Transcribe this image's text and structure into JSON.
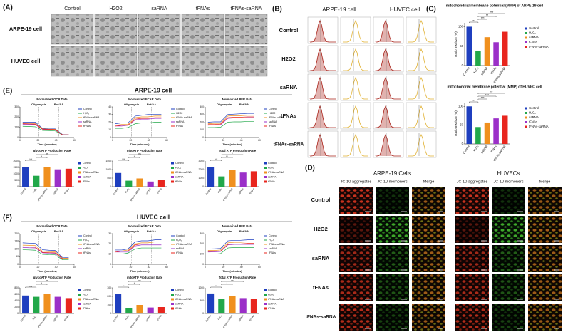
{
  "panels": {
    "A": {
      "label": "(A)",
      "columns": [
        "Control",
        "H2O2",
        "saRNA",
        "tFNAs",
        "tFNAs-saRNA"
      ],
      "rows": [
        "ARPE-19 cell",
        "HUVEC cell"
      ]
    },
    "B": {
      "label": "(B)",
      "columns": [
        "ARPE-19 cell",
        "HUVEC cell"
      ],
      "rows": [
        "Control",
        "H2O2",
        "saRNA",
        "tFNAs",
        "tFNAs-saRNA"
      ]
    },
    "C": {
      "label": "(C)"
    },
    "D": {
      "label": "(D)",
      "groups": [
        "ARPE-19 Cells",
        "HUVECs"
      ],
      "columns": [
        "JC-10 aggregates",
        "JC-10 momoners",
        "Merge"
      ],
      "rows": [
        "Control",
        "H2O2",
        "saRNA",
        "tFNAs",
        "tFNAs-saRNA"
      ]
    },
    "E": {
      "label": "(E)",
      "title": "ARPE-19 cell"
    },
    "F": {
      "label": "(F)",
      "title": "HUVEC cell"
    }
  },
  "chart_data": [
    {
      "type": "bar",
      "title": "mitochondrial membrane potential (MMP) of ARPE-19 cell",
      "ylabel": "Ratio 590/525 (%)",
      "categories": [
        "Control",
        "H₂O₂",
        "saRNA",
        "tFNAs",
        "tFNAs-saRNA"
      ],
      "values": [
        100,
        37,
        73,
        60,
        87
      ],
      "colors": [
        "#1f3fbf",
        "#22a84a",
        "#f0901e",
        "#9b30c8",
        "#e8261e"
      ],
      "ylim": [
        0,
        110
      ],
      "yticks": [
        0,
        50,
        100
      ],
      "annotations": [
        "***",
        "***",
        "**",
        "***"
      ]
    },
    {
      "type": "bar",
      "title": "mitochondrial membrane potential (MMP) of HUVEC cell",
      "ylabel": "Ratio 590/525 (%)",
      "categories": [
        "Control",
        "H₂O₂",
        "saRNA",
        "tFNAs",
        "tFNAs-saRNA"
      ],
      "values": [
        100,
        45,
        57,
        68,
        75
      ],
      "colors": [
        "#1f3fbf",
        "#22a84a",
        "#f0901e",
        "#9b30c8",
        "#e8261e"
      ],
      "ylim": [
        0,
        110
      ],
      "yticks": [
        0,
        50,
        100
      ],
      "annotations": [
        "***",
        "***",
        "***",
        "**"
      ]
    },
    {
      "type": "line",
      "title": "Normalized OCR Data",
      "xlabel": "Time (minutes)",
      "x": [
        3,
        10,
        17,
        25,
        32,
        39,
        47,
        54
      ],
      "xlim": [
        0,
        60
      ],
      "xticks": [
        0,
        20,
        40,
        60
      ],
      "ylim": [
        0,
        300
      ],
      "yticks": [
        0,
        100,
        200,
        300
      ],
      "events": [
        {
          "label": "Oligomycin",
          "x": 21
        },
        {
          "label": "Rot/AA",
          "x": 43
        }
      ],
      "series": [
        {
          "name": "Control",
          "color": "#1f3fbf",
          "values": [
            150,
            150,
            150,
            90,
            85,
            85,
            30,
            28
          ]
        },
        {
          "name": "H₂O₂",
          "color": "#22a84a",
          "values": [
            110,
            108,
            105,
            70,
            68,
            65,
            25,
            25
          ]
        },
        {
          "name": "tFNAs-saRNA",
          "color": "#f0901e",
          "values": [
            140,
            140,
            138,
            85,
            82,
            80,
            28,
            27
          ]
        },
        {
          "name": "saRNA",
          "color": "#9b30c8",
          "values": [
            130,
            128,
            126,
            80,
            78,
            76,
            27,
            26
          ]
        },
        {
          "name": "tFNAs",
          "color": "#e8261e",
          "values": [
            135,
            133,
            131,
            82,
            80,
            78,
            27,
            26
          ]
        }
      ]
    },
    {
      "type": "line",
      "title": "Normalized ECAR Data",
      "xlabel": "Time (minutes)",
      "x": [
        3,
        10,
        17,
        25,
        32,
        39,
        47,
        54
      ],
      "xlim": [
        0,
        60
      ],
      "xticks": [
        0,
        20,
        40,
        60
      ],
      "ylim": [
        0,
        40
      ],
      "yticks": [
        0,
        10,
        20,
        30,
        40
      ],
      "events": [
        {
          "label": "Oligomycin",
          "x": 21
        },
        {
          "label": "Rot/AA",
          "x": 43
        }
      ],
      "series": [
        {
          "name": "Control",
          "color": "#1f3fbf",
          "values": [
            18,
            19,
            19,
            28,
            29,
            30,
            30,
            30
          ]
        },
        {
          "name": "H2O2",
          "color": "#22a84a",
          "values": [
            12,
            12,
            13,
            18,
            19,
            19,
            20,
            20
          ]
        },
        {
          "name": "tFNAs-saRNA",
          "color": "#f0901e",
          "values": [
            16,
            17,
            17,
            26,
            27,
            27,
            28,
            28
          ]
        },
        {
          "name": "saRNA",
          "color": "#9b30c8",
          "values": [
            15,
            15,
            16,
            23,
            24,
            24,
            25,
            25
          ]
        },
        {
          "name": "tFNAs",
          "color": "#e8261e",
          "values": [
            15,
            16,
            16,
            24,
            25,
            25,
            26,
            26
          ]
        }
      ]
    },
    {
      "type": "line",
      "title": "Normalized PER Data",
      "xlabel": "Time (minutes)",
      "x": [
        3,
        10,
        17,
        25,
        32,
        39,
        47,
        54
      ],
      "xlim": [
        0,
        60
      ],
      "xticks": [
        0,
        20,
        40,
        60
      ],
      "ylim": [
        0,
        400
      ],
      "yticks": [
        0,
        100,
        200,
        300,
        400
      ],
      "events": [
        {
          "label": "Oligomycin",
          "x": 21
        },
        {
          "label": "Rot/AA",
          "x": 43
        }
      ],
      "series": [
        {
          "name": "Control",
          "color": "#1f3fbf",
          "values": [
            200,
            205,
            205,
            300,
            305,
            310,
            315,
            315
          ]
        },
        {
          "name": "H2O2",
          "color": "#22a84a",
          "values": [
            130,
            130,
            135,
            200,
            205,
            205,
            210,
            210
          ]
        },
        {
          "name": "tFNAs-saRNA",
          "color": "#f0901e",
          "values": [
            180,
            185,
            185,
            280,
            285,
            285,
            290,
            290
          ]
        },
        {
          "name": "saRNA",
          "color": "#9b30c8",
          "values": [
            160,
            165,
            165,
            250,
            255,
            255,
            260,
            260
          ]
        },
        {
          "name": "tFNAs",
          "color": "#e8261e",
          "values": [
            170,
            170,
            175,
            260,
            265,
            265,
            270,
            270
          ]
        }
      ]
    },
    {
      "type": "bar",
      "title": "glycoATP Production Rate",
      "categories": [
        "Control",
        "H₂O₂",
        "tFNAs-saRNA",
        "saRNA",
        "tFNAs"
      ],
      "values": [
        1550,
        850,
        1500,
        1350,
        1400
      ],
      "colors": [
        "#1f3fbf",
        "#22a84a",
        "#f0901e",
        "#9b30c8",
        "#e8261e"
      ],
      "ylim": [
        0,
        2000
      ],
      "yticks": [
        0,
        500,
        1000,
        1500,
        2000
      ],
      "annotations": [
        "***",
        "*",
        "ns"
      ]
    },
    {
      "type": "bar",
      "title": "mitoATP Production Rate",
      "categories": [
        "Control",
        "H₂O₂",
        "tFNAs-saRNA",
        "saRNA",
        "tFNAs"
      ],
      "values": [
        800,
        350,
        480,
        300,
        400
      ],
      "colors": [
        "#1f3fbf",
        "#22a84a",
        "#f0901e",
        "#9b30c8",
        "#e8261e"
      ],
      "ylim": [
        0,
        1500
      ],
      "yticks": [
        0,
        500,
        1000,
        1500
      ],
      "annotations": [
        "***",
        "*",
        "ns"
      ]
    },
    {
      "type": "bar",
      "title": "Total ATP Production Rate",
      "categories": [
        "Control",
        "H₂O₂",
        "tFNAs-saRNA",
        "saRNA",
        "tFNAs"
      ],
      "values": [
        2300,
        1200,
        2000,
        1650,
        1800
      ],
      "colors": [
        "#1f3fbf",
        "#22a84a",
        "#f0901e",
        "#9b30c8",
        "#e8261e"
      ],
      "ylim": [
        0,
        3000
      ],
      "yticks": [
        0,
        1000,
        2000,
        3000
      ],
      "annotations": [
        "***",
        "**",
        "*"
      ]
    },
    {
      "type": "line",
      "title": "Normalized OCR Data",
      "xlabel": "Time (minutes)",
      "x": [
        3,
        10,
        17,
        25,
        32,
        39,
        47,
        54
      ],
      "xlim": [
        0,
        60
      ],
      "xticks": [
        0,
        20,
        40,
        60
      ],
      "ylim": [
        0,
        200
      ],
      "yticks": [
        0,
        50,
        100,
        150,
        200
      ],
      "events": [
        {
          "label": "Oligomycin",
          "x": 21
        },
        {
          "label": "Rot/AA",
          "x": 43
        }
      ],
      "series": [
        {
          "name": "Control",
          "color": "#1f3fbf",
          "values": [
            140,
            138,
            136,
            95,
            92,
            90,
            45,
            44
          ]
        },
        {
          "name": "H₂O₂",
          "color": "#22a84a",
          "values": [
            95,
            94,
            92,
            65,
            63,
            62,
            30,
            30
          ]
        },
        {
          "name": "tFNAs-saRNA",
          "color": "#f0901e",
          "values": [
            125,
            124,
            122,
            85,
            83,
            82,
            40,
            40
          ]
        },
        {
          "name": "saRNA",
          "color": "#9b30c8",
          "values": [
            110,
            108,
            107,
            75,
            73,
            72,
            35,
            35
          ]
        },
        {
          "name": "tFNAs",
          "color": "#e8261e",
          "values": [
            115,
            113,
            112,
            78,
            76,
            75,
            37,
            36
          ]
        }
      ]
    },
    {
      "type": "line",
      "title": "Normalized ECAR Data",
      "xlabel": "Time (minutes)",
      "x": [
        3,
        10,
        17,
        25,
        32,
        39,
        47,
        54
      ],
      "xlim": [
        0,
        60
      ],
      "xticks": [
        0,
        20,
        40,
        60
      ],
      "ylim": [
        0,
        30
      ],
      "yticks": [
        0,
        10,
        20,
        30
      ],
      "events": [
        {
          "label": "Oligomycin",
          "x": 21
        },
        {
          "label": "Rot/AA",
          "x": 43
        }
      ],
      "series": [
        {
          "name": "Control",
          "color": "#1f3fbf",
          "values": [
            14,
            14,
            15,
            22,
            23,
            23,
            24,
            24
          ]
        },
        {
          "name": "H₂O₂",
          "color": "#22a84a",
          "values": [
            10,
            10,
            11,
            15,
            16,
            16,
            16,
            16
          ]
        },
        {
          "name": "tFNAs-saRNA",
          "color": "#f0901e",
          "values": [
            13,
            13,
            14,
            20,
            21,
            21,
            22,
            22
          ]
        },
        {
          "name": "saRNA",
          "color": "#9b30c8",
          "values": [
            12,
            12,
            12,
            18,
            19,
            19,
            19,
            19
          ]
        },
        {
          "name": "tFNAs",
          "color": "#e8261e",
          "values": [
            12,
            13,
            13,
            19,
            20,
            20,
            20,
            20
          ]
        }
      ]
    },
    {
      "type": "line",
      "title": "Normalized PER Data",
      "xlabel": "Time (minutes)",
      "x": [
        3,
        10,
        17,
        25,
        32,
        39,
        47,
        54
      ],
      "xlim": [
        0,
        60
      ],
      "xticks": [
        0,
        20,
        40,
        60
      ],
      "ylim": [
        0,
        300
      ],
      "yticks": [
        0,
        100,
        200,
        300
      ],
      "events": [
        {
          "label": "Oligomycin",
          "x": 21
        },
        {
          "label": "Rot/AA",
          "x": 43
        }
      ],
      "series": [
        {
          "name": "Control",
          "color": "#1f3fbf",
          "values": [
            150,
            152,
            155,
            230,
            235,
            235,
            240,
            240
          ]
        },
        {
          "name": "H₂O₂",
          "color": "#22a84a",
          "values": [
            100,
            100,
            105,
            160,
            165,
            165,
            165,
            165
          ]
        },
        {
          "name": "tFNAs-saRNA",
          "color": "#f0901e",
          "values": [
            135,
            135,
            140,
            210,
            215,
            215,
            220,
            220
          ]
        },
        {
          "name": "saRNA",
          "color": "#9b30c8",
          "values": [
            120,
            122,
            125,
            190,
            195,
            195,
            195,
            195
          ]
        },
        {
          "name": "tFNAs",
          "color": "#e8261e",
          "values": [
            125,
            127,
            130,
            195,
            200,
            200,
            205,
            205
          ]
        }
      ]
    },
    {
      "type": "bar",
      "title": "glycoATP Production Rate",
      "categories": [
        "Control",
        "H₂O₂",
        "tFNAs-saRNA",
        "saRNA",
        "tFNAs"
      ],
      "values": [
        560,
        520,
        600,
        520,
        480
      ],
      "colors": [
        "#1f3fbf",
        "#22a84a",
        "#f0901e",
        "#9b30c8",
        "#e8261e"
      ],
      "ylim": [
        0,
        800
      ],
      "yticks": [
        0,
        200,
        400,
        600,
        800
      ],
      "annotations": [
        "ns",
        "*",
        "ns"
      ]
    },
    {
      "type": "bar",
      "title": "mitoATP Production Rate",
      "categories": [
        "Control",
        "H₂O₂",
        "tFNAs-saRNA",
        "saRNA",
        "tFNAs"
      ],
      "values": [
        230,
        60,
        100,
        70,
        75
      ],
      "colors": [
        "#1f3fbf",
        "#22a84a",
        "#f0901e",
        "#9b30c8",
        "#e8261e"
      ],
      "ylim": [
        0,
        300
      ],
      "yticks": [
        0,
        100,
        200,
        300
      ],
      "annotations": [
        "**",
        "*",
        "ns"
      ]
    },
    {
      "type": "bar",
      "title": "Total ATP Production Rate",
      "categories": [
        "Control",
        "H₂O₂",
        "tFNAs-saRNA",
        "saRNA",
        "tFNAs"
      ],
      "values": [
        780,
        580,
        680,
        600,
        560
      ],
      "colors": [
        "#1f3fbf",
        "#22a84a",
        "#f0901e",
        "#9b30c8",
        "#e8261e"
      ],
      "ylim": [
        0,
        1000
      ],
      "yticks": [
        0,
        500,
        1000
      ],
      "annotations": [
        "**",
        "*",
        "ns"
      ]
    }
  ]
}
